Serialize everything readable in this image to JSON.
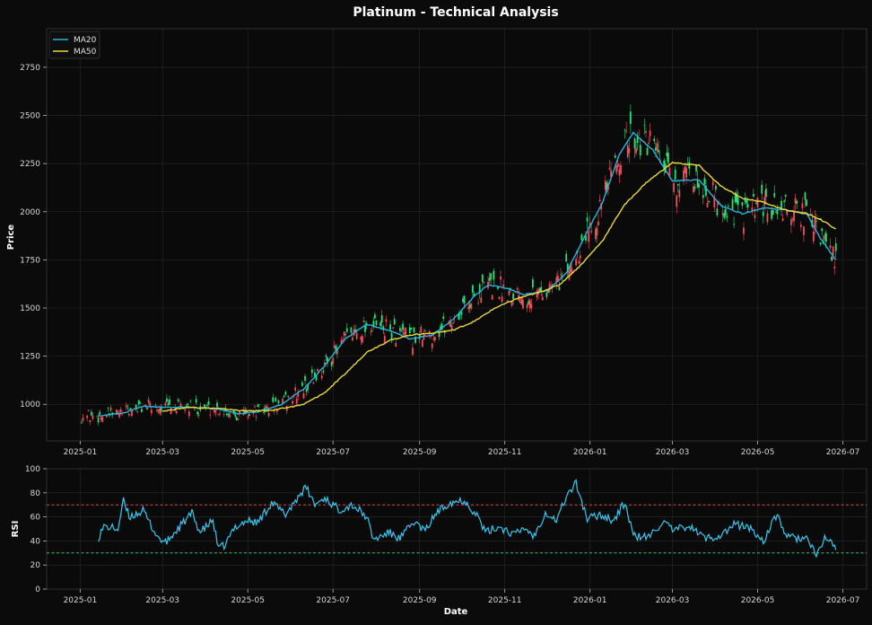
{
  "chart_data": [
    {
      "type": "candlestick",
      "title": "Platinum - Technical Analysis",
      "xlabel": "",
      "ylabel": "Price",
      "xlim": [
        "2024-12-08",
        "2026-07-18"
      ],
      "ylim": [
        810,
        2950
      ],
      "yticks": [
        1000,
        1250,
        1500,
        1750,
        2000,
        2250,
        2500,
        2750
      ],
      "xticks": [
        "2025-01",
        "2025-03",
        "2025-05",
        "2025-07",
        "2025-09",
        "2025-11",
        "2026-01",
        "2026-03",
        "2026-05",
        "2026-07"
      ],
      "legend": "top-left",
      "colors": {
        "up": "#20e37a",
        "down": "#f0505a",
        "ma20": "#2ab4e0",
        "ma50": "#e8d83a"
      },
      "series": [
        {
          "name": "MA20",
          "anchors": [
            [
              "2025-01-14",
              940
            ],
            [
              "2025-02-01",
              955
            ],
            [
              "2025-02-15",
              990
            ],
            [
              "2025-03-01",
              985
            ],
            [
              "2025-03-20",
              985
            ],
            [
              "2025-04-10",
              975
            ],
            [
              "2025-04-25",
              950
            ],
            [
              "2025-05-10",
              965
            ],
            [
              "2025-05-25",
              1000
            ],
            [
              "2025-06-10",
              1080
            ],
            [
              "2025-06-25",
              1200
            ],
            [
              "2025-07-10",
              1340
            ],
            [
              "2025-07-25",
              1415
            ],
            [
              "2025-08-10",
              1385
            ],
            [
              "2025-08-25",
              1340
            ],
            [
              "2025-09-10",
              1360
            ],
            [
              "2025-09-25",
              1440
            ],
            [
              "2025-10-10",
              1560
            ],
            [
              "2025-10-20",
              1620
            ],
            [
              "2025-11-01",
              1605
            ],
            [
              "2025-11-15",
              1570
            ],
            [
              "2025-12-01",
              1590
            ],
            [
              "2025-12-15",
              1680
            ],
            [
              "2025-12-28",
              1870
            ],
            [
              "2026-01-10",
              2050
            ],
            [
              "2026-01-22",
              2300
            ],
            [
              "2026-02-01",
              2410
            ],
            [
              "2026-02-15",
              2320
            ],
            [
              "2026-03-01",
              2160
            ],
            [
              "2026-03-20",
              2165
            ],
            [
              "2026-04-05",
              2030
            ],
            [
              "2026-04-20",
              1990
            ],
            [
              "2026-05-05",
              2020
            ],
            [
              "2026-05-20",
              2010
            ],
            [
              "2026-06-05",
              1990
            ],
            [
              "2026-06-15",
              1860
            ],
            [
              "2026-06-26",
              1750
            ]
          ]
        },
        {
          "name": "MA50",
          "anchors": [
            [
              "2025-03-01",
              965
            ],
            [
              "2025-03-20",
              985
            ],
            [
              "2025-04-10",
              978
            ],
            [
              "2025-05-01",
              965
            ],
            [
              "2025-05-20",
              970
            ],
            [
              "2025-06-10",
              1000
            ],
            [
              "2025-06-25",
              1060
            ],
            [
              "2025-07-10",
              1160
            ],
            [
              "2025-07-25",
              1270
            ],
            [
              "2025-08-10",
              1330
            ],
            [
              "2025-08-25",
              1360
            ],
            [
              "2025-09-10",
              1370
            ],
            [
              "2025-09-25",
              1385
            ],
            [
              "2025-10-10",
              1430
            ],
            [
              "2025-10-25",
              1500
            ],
            [
              "2025-11-10",
              1550
            ],
            [
              "2025-11-25",
              1580
            ],
            [
              "2025-12-10",
              1620
            ],
            [
              "2025-12-25",
              1720
            ],
            [
              "2026-01-10",
              1850
            ],
            [
              "2026-01-25",
              2030
            ],
            [
              "2026-02-10",
              2150
            ],
            [
              "2026-03-01",
              2255
            ],
            [
              "2026-03-20",
              2240
            ],
            [
              "2026-04-05",
              2130
            ],
            [
              "2026-04-20",
              2070
            ],
            [
              "2026-05-05",
              2050
            ],
            [
              "2026-05-20",
              2010
            ],
            [
              "2026-06-05",
              1990
            ],
            [
              "2026-06-15",
              1960
            ],
            [
              "2026-06-26",
              1910
            ]
          ]
        }
      ]
    },
    {
      "type": "line",
      "title": "",
      "xlabel": "Date",
      "ylabel": "RSI",
      "xlim": [
        "2024-12-08",
        "2026-07-18"
      ],
      "ylim": [
        0,
        100
      ],
      "yticks": [
        0,
        20,
        40,
        60,
        80,
        100
      ],
      "xticks": [
        "2025-01",
        "2025-03",
        "2025-05",
        "2025-07",
        "2025-09",
        "2025-11",
        "2026-01",
        "2026-03",
        "2026-05",
        "2026-07"
      ],
      "reference_lines": [
        {
          "value": 70,
          "color": "#d94c4c"
        },
        {
          "value": 30,
          "color": "#2ec47a"
        }
      ],
      "colors": {
        "line": "#36c8f0"
      },
      "series": [
        {
          "name": "RSI",
          "anchors": [
            [
              "2025-01-14",
              43
            ],
            [
              "2025-01-18",
              52
            ],
            [
              "2025-01-28",
              50
            ],
            [
              "2025-02-01",
              73
            ],
            [
              "2025-02-05",
              60
            ],
            [
              "2025-02-15",
              65
            ],
            [
              "2025-02-25",
              44
            ],
            [
              "2025-03-03",
              38
            ],
            [
              "2025-03-12",
              50
            ],
            [
              "2025-03-22",
              63
            ],
            [
              "2025-03-28",
              47
            ],
            [
              "2025-04-06",
              57
            ],
            [
              "2025-04-10",
              33
            ],
            [
              "2025-04-15",
              37
            ],
            [
              "2025-04-22",
              52
            ],
            [
              "2025-05-01",
              57
            ],
            [
              "2025-05-08",
              55
            ],
            [
              "2025-05-18",
              72
            ],
            [
              "2025-05-28",
              62
            ],
            [
              "2025-06-08",
              80
            ],
            [
              "2025-06-12",
              84
            ],
            [
              "2025-06-18",
              70
            ],
            [
              "2025-06-25",
              76
            ],
            [
              "2025-07-05",
              66
            ],
            [
              "2025-07-15",
              70
            ],
            [
              "2025-07-25",
              60
            ],
            [
              "2025-07-30",
              41
            ],
            [
              "2025-08-10",
              47
            ],
            [
              "2025-08-18",
              42
            ],
            [
              "2025-08-28",
              56
            ],
            [
              "2025-09-05",
              48
            ],
            [
              "2025-09-12",
              62
            ],
            [
              "2025-09-22",
              72
            ],
            [
              "2025-10-03",
              74
            ],
            [
              "2025-10-13",
              60
            ],
            [
              "2025-10-18",
              47
            ],
            [
              "2025-10-28",
              52
            ],
            [
              "2025-11-08",
              45
            ],
            [
              "2025-11-15",
              51
            ],
            [
              "2025-11-22",
              44
            ],
            [
              "2025-11-30",
              64
            ],
            [
              "2025-12-08",
              57
            ],
            [
              "2025-12-15",
              77
            ],
            [
              "2025-12-22",
              88
            ],
            [
              "2025-12-30",
              58
            ],
            [
              "2026-01-08",
              62
            ],
            [
              "2026-01-18",
              57
            ],
            [
              "2026-01-26",
              72
            ],
            [
              "2026-02-01",
              44
            ],
            [
              "2026-02-12",
              43
            ],
            [
              "2026-02-22",
              56
            ],
            [
              "2026-03-02",
              48
            ],
            [
              "2026-03-12",
              53
            ],
            [
              "2026-03-25",
              42
            ],
            [
              "2026-04-05",
              45
            ],
            [
              "2026-04-15",
              54
            ],
            [
              "2026-04-25",
              51
            ],
            [
              "2026-05-05",
              40
            ],
            [
              "2026-05-15",
              62
            ],
            [
              "2026-05-22",
              43
            ],
            [
              "2026-06-05",
              42
            ],
            [
              "2026-06-12",
              27
            ],
            [
              "2026-06-18",
              43
            ],
            [
              "2026-06-26",
              35
            ]
          ]
        }
      ]
    }
  ]
}
